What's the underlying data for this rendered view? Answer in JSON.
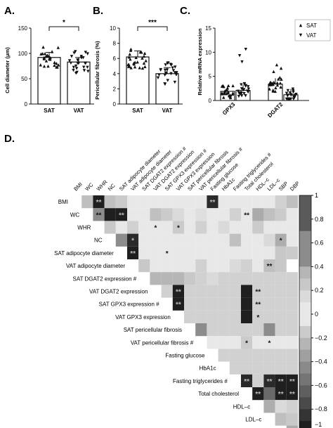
{
  "panels": {
    "a": {
      "label": "A.",
      "ylabel": "Cell diameter (μm)",
      "yticks": [
        "0",
        "50",
        "100",
        "150"
      ],
      "ylim": [
        0,
        150
      ],
      "categories": [
        "SAT",
        "VAT"
      ],
      "values": [
        92,
        83
      ],
      "errors": [
        10,
        9
      ],
      "sig": "*"
    },
    "b": {
      "label": "B.",
      "ylabel": "Pericellular fibrosis (%)",
      "yticks": [
        "0",
        "2",
        "4",
        "6",
        "8",
        "10"
      ],
      "ylim": [
        0,
        10
      ],
      "categories": [
        "SAT",
        "VAT"
      ],
      "values": [
        6.2,
        4.0
      ],
      "errors": [
        0.8,
        0.8
      ],
      "sig": "***"
    },
    "c": {
      "label": "C.",
      "ylabel": "Relative mRNA expression",
      "yticks": [
        "0",
        "5",
        "10",
        "15"
      ],
      "ylim": [
        0,
        15
      ],
      "categories": [
        "GPX3",
        "DGAT2"
      ],
      "series": [
        {
          "name": "SAT",
          "values": [
            1.9,
            3.4
          ]
        },
        {
          "name": "VAT",
          "values": [
            2.1,
            1.2
          ]
        }
      ],
      "legend": [
        "SAT",
        "VAT"
      ]
    },
    "d": {
      "label": "D."
    }
  },
  "chart_data": [
    {
      "type": "bar",
      "title": "",
      "ylabel": "Cell diameter (μm)",
      "categories": [
        "SAT",
        "VAT"
      ],
      "values": [
        92,
        83
      ],
      "ylim": [
        0,
        150
      ]
    },
    {
      "type": "bar",
      "title": "",
      "ylabel": "Pericellular fibrosis (%)",
      "categories": [
        "SAT",
        "VAT"
      ],
      "values": [
        6.2,
        4.0
      ],
      "ylim": [
        0,
        10
      ]
    },
    {
      "type": "bar",
      "title": "",
      "ylabel": "Relative mRNA expression",
      "categories": [
        "GPX3",
        "DGAT2"
      ],
      "series": [
        {
          "name": "SAT",
          "values": [
            1.9,
            3.4
          ]
        },
        {
          "name": "VAT",
          "values": [
            2.1,
            1.2
          ]
        }
      ],
      "ylim": [
        0,
        15
      ],
      "legend": "top-right"
    },
    {
      "type": "heatmap",
      "labels": [
        "BMI",
        "WC",
        "WHR",
        "NC",
        "SAT adipocyte diameter",
        "VAT adipocyte diameter",
        "SAT DGAT2 expression #",
        "VAT DGAT2 expression",
        "SAT GPX3 expression #",
        "VAT GPX3 expression",
        "SAT pericellular fibrosis",
        "VAT pericellular fibrosis  #",
        "Fasting glucose",
        "HbA1c",
        "Fasting triglycerides #",
        "Total cholesterol",
        "HDL–c",
        "LDL–c",
        "SBP",
        "DBP"
      ],
      "colorbar": {
        "ticks": [
          "1",
          "0.8",
          "0.6",
          "0.4",
          "0.2",
          "0",
          "−0.2",
          "−0.4",
          "−0.6",
          "−0.8",
          "−1"
        ],
        "range": [
          -1,
          1
        ]
      },
      "values": [
        [
          0.3,
          -0.95,
          -0.2,
          -0.15,
          -0.1,
          -0.08,
          -0.05,
          0.05,
          -0.1,
          -0.05,
          0.02,
          -0.9,
          0.1,
          -0.1,
          -0.05,
          0.05,
          0.1,
          -0.12,
          0.3
        ],
        [
          0.5,
          -0.95,
          -0.95,
          -0.05,
          -0.1,
          -0.2,
          -0.15,
          0.15,
          -0.08,
          0.12,
          -0.1,
          -0.05,
          0.2,
          0.02,
          -0.3,
          -0.2,
          -0.15,
          0.05
        ],
        [
          0.25,
          -0.05,
          -0.12,
          -0.08,
          -0.1,
          0.05,
          -0.15,
          -0.1,
          0.2,
          -0.05,
          0.15,
          0.1,
          -0.1,
          -0.15,
          0.05,
          0.02,
          -0.1
        ],
        [
          0.45,
          -0.9,
          -0.1,
          -0.05,
          0.1,
          0.05,
          -0.05,
          -0.08,
          0.05,
          0.1,
          -0.2,
          -0.1,
          -0.05,
          0.15,
          0.4,
          -0.05
        ],
        [
          -0.95,
          -0.08,
          0.1,
          -0.1,
          -0.05,
          0.08,
          -0.1,
          0.02,
          0.05,
          0.1,
          -0.05,
          -0.1,
          0.1,
          0.25,
          -0.15
        ],
        [
          0.25,
          0.05,
          -0.1,
          -0.05,
          0.05,
          0.2,
          0.1,
          -0.1,
          0.15,
          -0.12,
          -0.05,
          0.3,
          0.25
        ],
        [
          0.35,
          0.35,
          0.35,
          0.25,
          0.2,
          0.15,
          0.2,
          0.2,
          0.2,
          0.2,
          0.2,
          0.2,
          0.2
        ],
        [
          0.2,
          -0.95,
          0.2,
          0.2,
          0.2,
          0.2,
          0.2,
          -0.95,
          0.2,
          0.2,
          0.2,
          0.2
        ],
        [
          -0.95,
          0.2,
          0.2,
          0.2,
          0.2,
          0.2,
          -0.95,
          0.2,
          0.2,
          0.2,
          0.2
        ],
        [
          0.2,
          0.2,
          0.2,
          0.2,
          0.2,
          -0.95,
          0.2,
          0.2,
          0.2,
          0.2
        ],
        [
          0.45,
          0.2,
          0.2,
          0.2,
          0.2,
          0.2,
          0.45,
          0.2,
          0.2
        ],
        [
          0.05,
          0.1,
          0.05,
          -0.15,
          0.05,
          0.1,
          0.05,
          0.02
        ],
        [
          0.2,
          0.2,
          0.2,
          0.2,
          0.2,
          0.2,
          0.2
        ],
        [
          0.2,
          0.2,
          0.2,
          0.2,
          0.2,
          0.2
        ],
        [
          -0.9,
          0.2,
          -0.9,
          -0.95,
          -0.95
        ],
        [
          -0.95,
          -0.6,
          -0.95,
          -0.95
        ],
        [
          0.4,
          0.15,
          0.2
        ],
        [
          0.3,
          0.25
        ],
        [
          -0.3
        ]
      ],
      "stars": [
        [
          0,
          1,
          "**"
        ],
        [
          0,
          11,
          "**"
        ],
        [
          1,
          0,
          "**"
        ],
        [
          1,
          2,
          "**"
        ],
        [
          1,
          13,
          "**"
        ],
        [
          2,
          4,
          "*"
        ],
        [
          2,
          6,
          "*"
        ],
        [
          3,
          1,
          "*"
        ],
        [
          3,
          14,
          "*"
        ],
        [
          4,
          0,
          "**"
        ],
        [
          4,
          3,
          "*"
        ],
        [
          5,
          11,
          "**"
        ],
        [
          7,
          1,
          "**"
        ],
        [
          7,
          8,
          "**"
        ],
        [
          8,
          0,
          "**"
        ],
        [
          8,
          7,
          "**"
        ],
        [
          9,
          6,
          "*"
        ],
        [
          11,
          3,
          "*"
        ],
        [
          11,
          5,
          "*"
        ],
        [
          14,
          0,
          "**"
        ],
        [
          14,
          2,
          "**"
        ],
        [
          14,
          3,
          "**"
        ],
        [
          14,
          4,
          "**"
        ],
        [
          15,
          0,
          "**"
        ],
        [
          15,
          2,
          "**"
        ],
        [
          15,
          3,
          "**"
        ]
      ]
    }
  ]
}
